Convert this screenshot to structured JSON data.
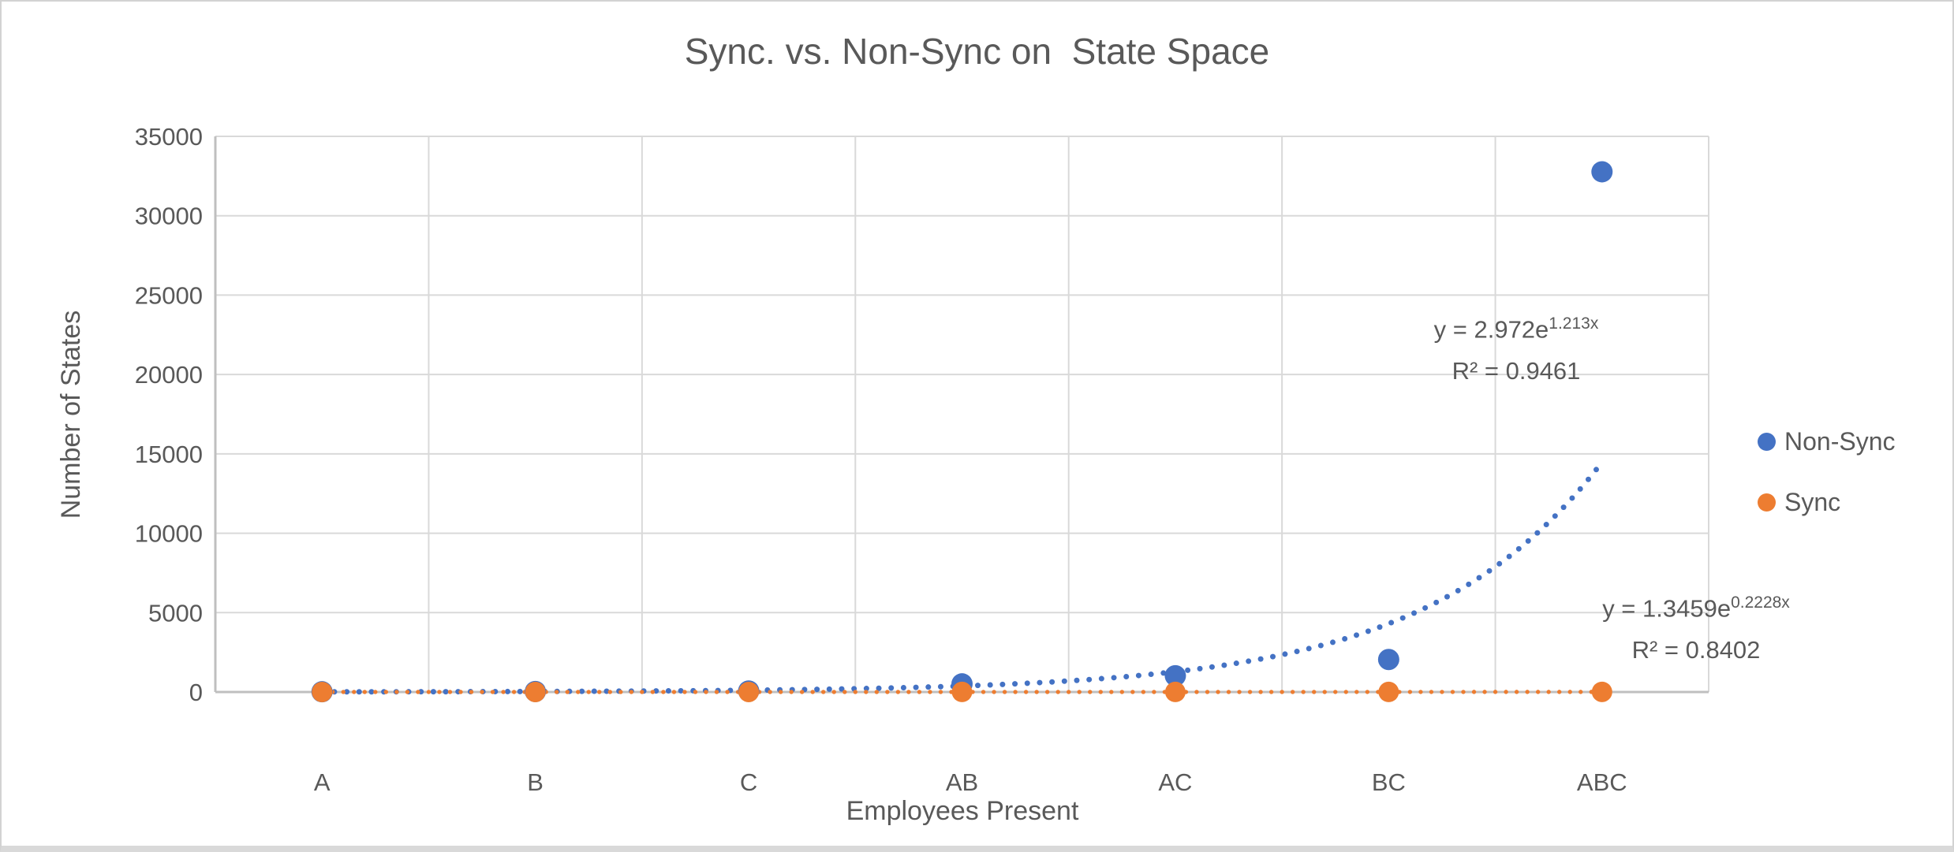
{
  "chart_data": {
    "type": "scatter",
    "title": "Sync. vs. Non-Sync on  State Space",
    "xlabel": "Employees Present",
    "ylabel": "Number of States",
    "categories": [
      "A",
      "B",
      "C",
      "AB",
      "AC",
      "BC",
      "ABC"
    ],
    "series": [
      {
        "name": "Non-Sync",
        "color": "#4472C4",
        "values": [
          16,
          32,
          64,
          512,
          1024,
          2048,
          32768
        ]
      },
      {
        "name": "Sync",
        "color": "#ED7D31",
        "values": [
          2,
          2,
          2,
          4,
          4,
          4,
          8
        ]
      }
    ],
    "ylim": [
      0,
      35000
    ],
    "y_ticks": [
      0,
      5000,
      10000,
      15000,
      20000,
      25000,
      30000,
      35000
    ],
    "grid": true,
    "legend_position": "right",
    "trendlines": [
      {
        "series": "Non-Sync",
        "type": "exponential",
        "color": "#4472C4",
        "a": 2.972,
        "b": 1.213,
        "equation_base": "y = 2.972e",
        "equation_exponent": "1.213x",
        "r_squared_label": "R² = 0.9461"
      },
      {
        "series": "Sync",
        "type": "exponential",
        "color": "#ED7D31",
        "a": 1.3459,
        "b": 0.2228,
        "equation_base": "y = 1.3459e",
        "equation_exponent": "0.2228x",
        "r_squared_label": "R² = 0.8402"
      }
    ],
    "text_color": "#595959",
    "gridline_color": "#D9D9D9",
    "axis_color": "#BFBFBF"
  }
}
